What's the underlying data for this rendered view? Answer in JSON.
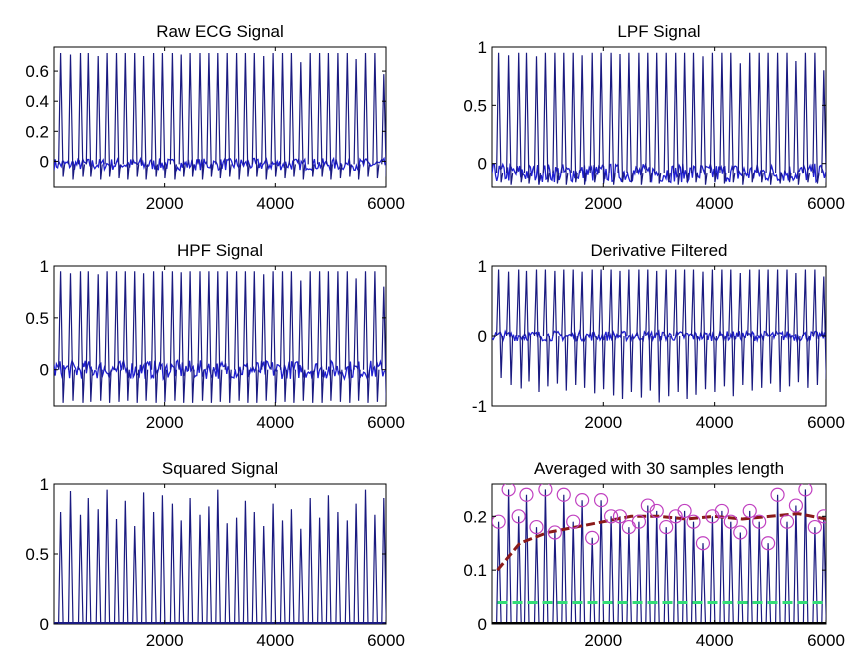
{
  "colors": {
    "signal": "#1a1a80",
    "signal_bright": "#1f1fd0",
    "threshold": "#8b1a1a",
    "noise": "#33dd77",
    "peaks": "#c040c0",
    "axes": "#000000"
  },
  "chart_data": [
    {
      "type": "line",
      "title": "Raw ECG Signal",
      "xlim": [
        1,
        6000
      ],
      "ylim": [
        -0.17,
        0.76
      ],
      "xticks": [
        2000,
        4000,
        6000
      ],
      "xtick_labels": [
        "2000",
        "4000",
        "6000"
      ],
      "yticks": [
        0,
        0.2,
        0.4,
        0.6
      ],
      "ytick_labels": [
        "0",
        "0.2",
        "0.4",
        "0.6"
      ],
      "beats_x": [
        120,
        300,
        480,
        620,
        800,
        960,
        1130,
        1290,
        1460,
        1620,
        1800,
        1960,
        2140,
        2300,
        2460,
        2640,
        2800,
        2960,
        3130,
        3300,
        3460,
        3620,
        3790,
        3960,
        4130,
        4290,
        4460,
        4630,
        4800,
        4960,
        5130,
        5300,
        5460,
        5630,
        5800,
        5960
      ],
      "peak_values": [
        0.72,
        0.71,
        0.72,
        0.72,
        0.7,
        0.72,
        0.72,
        0.72,
        0.72,
        0.7,
        0.72,
        0.72,
        0.72,
        0.71,
        0.72,
        0.72,
        0.72,
        0.72,
        0.72,
        0.72,
        0.72,
        0.72,
        0.7,
        0.72,
        0.72,
        0.72,
        0.66,
        0.72,
        0.72,
        0.72,
        0.72,
        0.72,
        0.68,
        0.72,
        0.72,
        0.58
      ],
      "trough_values": [
        -0.1,
        -0.12,
        -0.1,
        -0.1,
        -0.12,
        -0.1,
        -0.11,
        -0.12,
        -0.1,
        -0.12,
        -0.1,
        -0.11,
        -0.12,
        -0.1,
        -0.1,
        -0.12,
        -0.1,
        -0.11,
        -0.1,
        -0.12,
        -0.1,
        -0.1,
        -0.12,
        -0.1,
        -0.11,
        -0.1,
        -0.12,
        -0.1,
        -0.1,
        -0.12,
        -0.11,
        -0.1,
        -0.12,
        -0.1,
        -0.11,
        -0.1
      ],
      "baseline": -0.02,
      "noise": 0.04
    },
    {
      "type": "line",
      "title": "LPF Signal",
      "xlim": [
        1,
        6000
      ],
      "ylim": [
        -0.2,
        1.0
      ],
      "xticks": [
        2000,
        4000,
        6000
      ],
      "xtick_labels": [
        "2000",
        "4000",
        "6000"
      ],
      "yticks": [
        0,
        0.5,
        1
      ],
      "ytick_labels": [
        "0",
        "0.5",
        "1"
      ],
      "beats_x": [
        120,
        300,
        480,
        620,
        800,
        960,
        1130,
        1290,
        1460,
        1620,
        1800,
        1960,
        2140,
        2300,
        2460,
        2640,
        2800,
        2960,
        3130,
        3300,
        3460,
        3620,
        3790,
        3960,
        4130,
        4290,
        4460,
        4630,
        4800,
        4960,
        5130,
        5300,
        5460,
        5630,
        5800,
        5960
      ],
      "peak_values": [
        0.95,
        0.93,
        0.95,
        0.95,
        0.92,
        0.95,
        0.95,
        0.95,
        0.95,
        0.93,
        0.95,
        0.95,
        0.95,
        0.94,
        0.95,
        0.95,
        0.95,
        0.95,
        0.95,
        0.95,
        0.95,
        0.95,
        0.92,
        0.95,
        0.95,
        0.95,
        0.86,
        0.95,
        0.95,
        0.95,
        0.95,
        0.95,
        0.88,
        0.95,
        0.95,
        0.8
      ],
      "trough_values": [
        -0.16,
        -0.18,
        -0.16,
        -0.17,
        -0.18,
        -0.16,
        -0.17,
        -0.18,
        -0.16,
        -0.18,
        -0.16,
        -0.17,
        -0.18,
        -0.16,
        -0.16,
        -0.18,
        -0.16,
        -0.17,
        -0.16,
        -0.18,
        -0.16,
        -0.16,
        -0.18,
        -0.16,
        -0.17,
        -0.16,
        -0.18,
        -0.16,
        -0.16,
        -0.18,
        -0.17,
        -0.16,
        -0.18,
        -0.16,
        -0.17,
        -0.16
      ],
      "baseline": -0.08,
      "noise": 0.08
    },
    {
      "type": "line",
      "title": "HPF Signal",
      "xlim": [
        1,
        6000
      ],
      "ylim": [
        -0.35,
        1.0
      ],
      "xticks": [
        2000,
        4000,
        6000
      ],
      "xtick_labels": [
        "2000",
        "4000",
        "6000"
      ],
      "yticks": [
        0,
        0.5,
        1
      ],
      "ytick_labels": [
        "0",
        "0.5",
        "1"
      ],
      "beats_x": [
        120,
        300,
        480,
        620,
        800,
        960,
        1130,
        1290,
        1460,
        1620,
        1800,
        1960,
        2140,
        2300,
        2460,
        2640,
        2800,
        2960,
        3130,
        3300,
        3460,
        3620,
        3790,
        3960,
        4130,
        4290,
        4460,
        4630,
        4800,
        4960,
        5130,
        5300,
        5460,
        5630,
        5800,
        5960
      ],
      "peak_values": [
        0.95,
        0.93,
        0.95,
        0.95,
        0.92,
        0.95,
        0.95,
        0.95,
        0.95,
        0.93,
        0.95,
        0.95,
        0.95,
        0.94,
        0.95,
        0.95,
        0.95,
        0.95,
        0.95,
        0.95,
        0.95,
        0.95,
        0.92,
        0.95,
        0.95,
        0.95,
        0.86,
        0.95,
        0.95,
        0.95,
        0.95,
        0.95,
        0.88,
        0.95,
        0.95,
        0.8
      ],
      "trough_values": [
        -0.32,
        -0.3,
        -0.32,
        -0.31,
        -0.3,
        -0.32,
        -0.31,
        -0.3,
        -0.32,
        -0.3,
        -0.32,
        -0.31,
        -0.3,
        -0.32,
        -0.32,
        -0.3,
        -0.32,
        -0.31,
        -0.32,
        -0.3,
        -0.32,
        -0.32,
        -0.3,
        -0.32,
        -0.31,
        -0.32,
        -0.3,
        -0.32,
        -0.32,
        -0.3,
        -0.31,
        -0.32,
        -0.3,
        -0.32,
        -0.31,
        -0.32
      ],
      "baseline": 0.0,
      "noise": 0.09
    },
    {
      "type": "line",
      "title": "Derivative Filtered",
      "xlim": [
        1,
        6000
      ],
      "ylim": [
        -1.0,
        1.0
      ],
      "xticks": [
        2000,
        4000,
        6000
      ],
      "xtick_labels": [
        "2000",
        "4000",
        "6000"
      ],
      "yticks": [
        -1,
        0,
        1
      ],
      "ytick_labels": [
        "-1",
        "0",
        "1"
      ],
      "beats_x": [
        120,
        300,
        480,
        620,
        800,
        960,
        1130,
        1290,
        1460,
        1620,
        1800,
        1960,
        2140,
        2300,
        2460,
        2640,
        2800,
        2960,
        3130,
        3300,
        3460,
        3620,
        3790,
        3960,
        4130,
        4290,
        4460,
        4630,
        4800,
        4960,
        5130,
        5300,
        5460,
        5630,
        5800,
        5960
      ],
      "peak_values": [
        0.95,
        0.92,
        0.95,
        0.93,
        0.95,
        0.95,
        0.93,
        0.95,
        0.95,
        0.92,
        0.95,
        0.95,
        0.95,
        0.93,
        0.95,
        0.95,
        0.95,
        0.93,
        0.95,
        0.95,
        0.95,
        0.95,
        0.92,
        0.95,
        0.95,
        0.95,
        0.9,
        0.95,
        0.95,
        0.95,
        0.95,
        0.95,
        0.9,
        0.95,
        0.95,
        0.85
      ],
      "trough_values": [
        -0.6,
        -0.7,
        -0.75,
        -0.65,
        -0.8,
        -0.72,
        -0.68,
        -0.78,
        -0.7,
        -0.74,
        -0.82,
        -0.76,
        -0.85,
        -0.9,
        -0.8,
        -0.88,
        -0.78,
        -0.95,
        -0.86,
        -0.8,
        -0.9,
        -0.84,
        -0.76,
        -0.8,
        -0.72,
        -0.86,
        -0.7,
        -0.78,
        -0.74,
        -0.68,
        -0.8,
        -0.72,
        -0.66,
        -0.74,
        -0.7,
        -0.62
      ],
      "baseline": 0.0,
      "noise": 0.07
    },
    {
      "type": "line",
      "title": "Squared Signal",
      "xlim": [
        1,
        6000
      ],
      "ylim": [
        0,
        1.0
      ],
      "xticks": [
        2000,
        4000,
        6000
      ],
      "xtick_labels": [
        "2000",
        "4000",
        "6000"
      ],
      "yticks": [
        0,
        0.5,
        1
      ],
      "ytick_labels": [
        "0",
        "0.5",
        "1"
      ],
      "beats_x": [
        120,
        300,
        480,
        620,
        800,
        960,
        1130,
        1290,
        1460,
        1620,
        1800,
        1960,
        2140,
        2300,
        2460,
        2640,
        2800,
        2960,
        3130,
        3300,
        3460,
        3620,
        3790,
        3960,
        4130,
        4290,
        4460,
        4630,
        4800,
        4960,
        5130,
        5300,
        5460,
        5630,
        5800,
        5960
      ],
      "peak_values": [
        0.8,
        0.95,
        0.78,
        0.9,
        0.82,
        0.96,
        0.75,
        0.88,
        0.7,
        0.94,
        0.8,
        0.92,
        0.86,
        0.74,
        0.9,
        0.78,
        0.84,
        0.96,
        0.72,
        0.76,
        0.88,
        0.8,
        0.7,
        0.86,
        0.74,
        0.82,
        0.68,
        0.9,
        0.76,
        0.92,
        0.8,
        0.74,
        0.86,
        0.96,
        0.78,
        0.9
      ],
      "trough_values": [],
      "baseline": 0.0,
      "noise": 0.0
    },
    {
      "type": "line",
      "title": "Averaged with 30 samples length",
      "xlim": [
        1,
        6000
      ],
      "ylim": [
        0,
        0.26
      ],
      "xticks": [
        2000,
        4000,
        6000
      ],
      "xtick_labels": [
        "2000",
        "4000",
        "6000"
      ],
      "yticks": [
        0,
        0.1,
        0.2
      ],
      "ytick_labels": [
        "0",
        "0.1",
        "0.2"
      ],
      "beats_x": [
        120,
        300,
        480,
        620,
        800,
        960,
        1130,
        1290,
        1460,
        1620,
        1800,
        1960,
        2140,
        2300,
        2460,
        2640,
        2800,
        2960,
        3130,
        3300,
        3460,
        3620,
        3790,
        3960,
        4130,
        4290,
        4460,
        4630,
        4800,
        4960,
        5130,
        5300,
        5460,
        5630,
        5800,
        5960
      ],
      "peak_values": [
        0.19,
        0.25,
        0.2,
        0.24,
        0.18,
        0.25,
        0.17,
        0.24,
        0.19,
        0.23,
        0.16,
        0.23,
        0.2,
        0.2,
        0.18,
        0.19,
        0.22,
        0.21,
        0.18,
        0.2,
        0.21,
        0.19,
        0.15,
        0.2,
        0.21,
        0.19,
        0.17,
        0.21,
        0.19,
        0.15,
        0.24,
        0.19,
        0.22,
        0.25,
        0.18,
        0.2
      ],
      "trough_values": [],
      "baseline": 0.0,
      "noise": 0.0,
      "threshold_x": [
        100,
        500,
        1000,
        1500,
        2000,
        2500,
        3000,
        3500,
        4000,
        4500,
        5000,
        5500,
        6000
      ],
      "threshold_y": [
        0.1,
        0.15,
        0.17,
        0.18,
        0.19,
        0.2,
        0.2,
        0.195,
        0.2,
        0.195,
        0.2,
        0.205,
        0.195
      ],
      "noise_level": 0.04
    }
  ]
}
